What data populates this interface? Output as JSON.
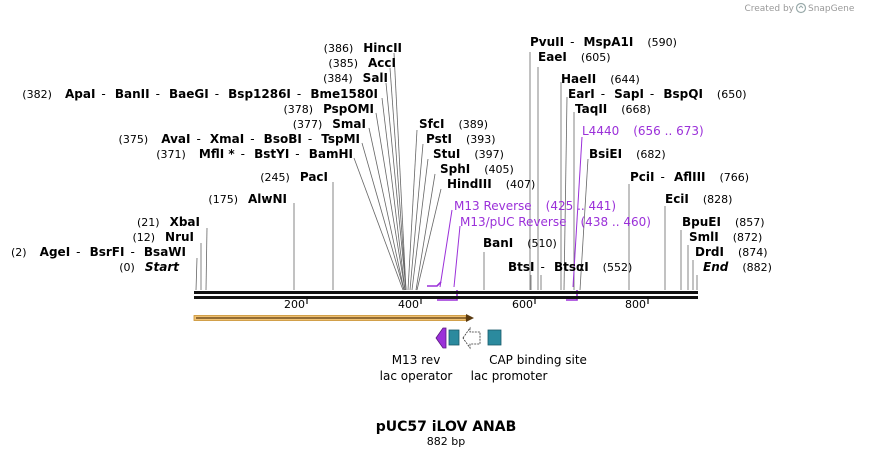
{
  "credit": {
    "created_by": "Created by",
    "brand": "SnapGene"
  },
  "title": "pUC57 iLOV ANAB",
  "length": "882 bp",
  "colors": {
    "primer": "#9b30d9",
    "feature_blue": "#2b8a9e",
    "orf": "#f0c070"
  },
  "axis": {
    "ticks": [
      "200",
      "400",
      "600",
      "800"
    ]
  },
  "label_rows": [
    {
      "pos": "(386)",
      "names": [
        "HincII"
      ]
    },
    {
      "pos": "(385)",
      "names": [
        "AccI"
      ]
    },
    {
      "pos": "(384)",
      "names": [
        "SalI"
      ]
    },
    {
      "pos": "(382)",
      "names": [
        "ApaI",
        "BanII",
        "BaeGI",
        "Bsp1286I",
        "Bme1580I"
      ]
    },
    {
      "pos": "(378)",
      "names": [
        "PspOMI"
      ]
    },
    {
      "pos": "(377)",
      "names": [
        "SmaI"
      ]
    },
    {
      "pos": "(375)",
      "names": [
        "AvaI",
        "XmaI",
        "BsoBI",
        "TspMI"
      ]
    },
    {
      "pos": "(371)",
      "names": [
        "MflI *",
        "BstYI",
        "BamHI"
      ]
    },
    {
      "pos": "(245)",
      "names": [
        "PacI"
      ]
    },
    {
      "pos": "(175)",
      "names": [
        "AlwNI"
      ]
    },
    {
      "pos": "(21)",
      "names": [
        "XbaI"
      ]
    },
    {
      "pos": "(12)",
      "names": [
        "NruI"
      ]
    },
    {
      "pos": "(2)",
      "names": [
        "AgeI",
        "BsrFI",
        "BsaWI"
      ]
    },
    {
      "pos": "(0)",
      "names": [
        "Start"
      ]
    },
    {
      "pos": "(389)",
      "names": [
        "SfcI"
      ]
    },
    {
      "pos": "(393)",
      "names": [
        "PstI"
      ]
    },
    {
      "pos": "(397)",
      "names": [
        "StuI"
      ]
    },
    {
      "pos": "(405)",
      "names": [
        "SphI"
      ]
    },
    {
      "pos": "(407)",
      "names": [
        "HindIII"
      ]
    },
    {
      "pos": "(590)",
      "names": [
        "PvuII",
        "MspA1I"
      ]
    },
    {
      "pos": "(605)",
      "names": [
        "EaeI"
      ]
    },
    {
      "pos": "(644)",
      "names": [
        "HaeII"
      ]
    },
    {
      "pos": "(650)",
      "names": [
        "EarI",
        "SapI",
        "BspQI"
      ]
    },
    {
      "pos": "(668)",
      "names": [
        "TaqII"
      ]
    },
    {
      "pos": "(682)",
      "names": [
        "BsiEI"
      ]
    },
    {
      "pos": "(510)",
      "names": [
        "BanI"
      ]
    },
    {
      "pos": "(552)",
      "names": [
        "BtsI",
        "BtsαI"
      ]
    },
    {
      "pos": "(766)",
      "names": [
        "PciI",
        "AflIII"
      ]
    },
    {
      "pos": "(828)",
      "names": [
        "EciI"
      ]
    },
    {
      "pos": "(857)",
      "names": [
        "BpuEI"
      ]
    },
    {
      "pos": "(872)",
      "names": [
        "SmlI"
      ]
    },
    {
      "pos": "(874)",
      "names": [
        "DrdI"
      ]
    },
    {
      "pos": "(882)",
      "names": [
        "End"
      ]
    }
  ],
  "primers": [
    {
      "name": "L4440",
      "range": "(656 .. 673)"
    },
    {
      "name": "M13 Reverse",
      "range": "(425 .. 441)"
    },
    {
      "name": "M13/pUC Reverse",
      "range": "(438 .. 460)"
    }
  ],
  "features": {
    "m13_rev": "M13 rev",
    "lac_operator": "lac operator",
    "lac_promoter": "lac promoter",
    "cap_site": "CAP binding site"
  }
}
